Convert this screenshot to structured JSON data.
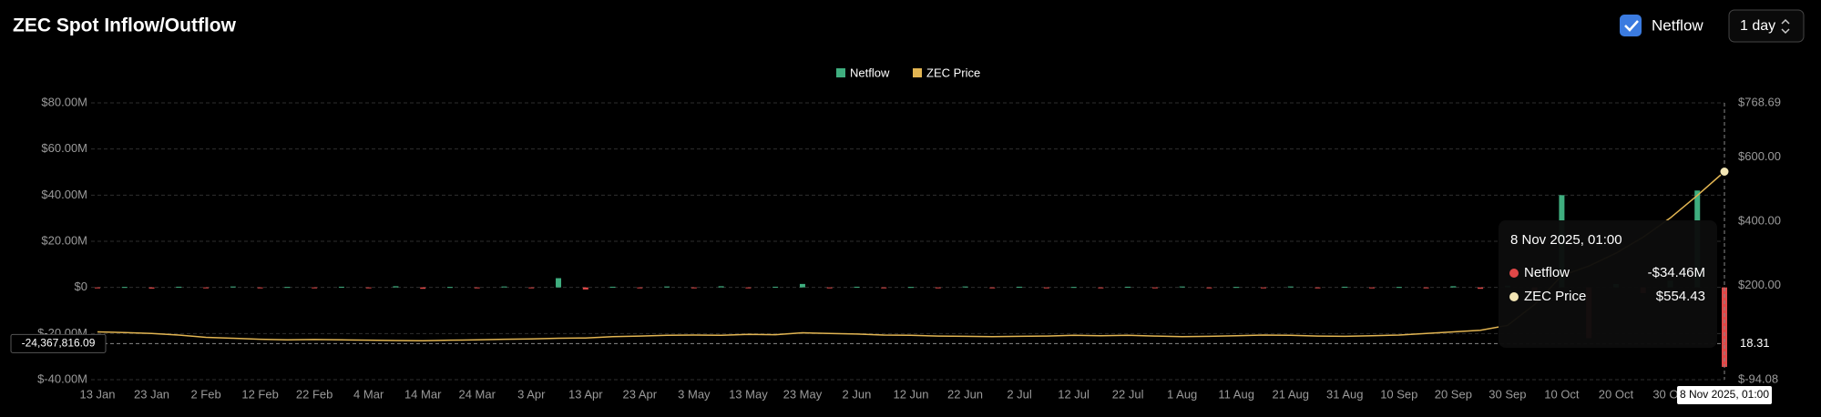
{
  "header": {
    "title": "ZEC Spot Inflow/Outflow",
    "toggle": "Netflow",
    "interval": "1 day"
  },
  "chart_data": {
    "type": "bar-line",
    "categories": [
      "13 Jan",
      null,
      "23 Jan",
      null,
      "2 Feb",
      null,
      "12 Feb",
      null,
      "22 Feb",
      null,
      "4 Mar",
      null,
      "14 Mar",
      null,
      "24 Mar",
      null,
      "3 Apr",
      null,
      "13 Apr",
      null,
      "23 Apr",
      null,
      "3 May",
      null,
      "13 May",
      null,
      "23 May",
      null,
      "2 Jun",
      null,
      "12 Jun",
      null,
      "22 Jun",
      null,
      "2 Jul",
      null,
      "12 Jul",
      null,
      "22 Jul",
      null,
      "1 Aug",
      null,
      "11 Aug",
      null,
      "21 Aug",
      null,
      "31 Aug",
      null,
      "10 Sep",
      null,
      "20 Sep",
      null,
      "30 Sep",
      null,
      "10 Oct",
      null,
      "20 Oct",
      null,
      "30 Oct",
      null,
      "8 Nov 2025, 01:00"
    ],
    "series": [
      {
        "name": "Netflow",
        "type": "bar",
        "color": "#3fae7f",
        "negative_color": "#e04848",
        "values": [
          -300000,
          200000,
          -500000,
          300000,
          -200000,
          400000,
          -300000,
          200000,
          -400000,
          300000,
          -200000,
          500000,
          -600000,
          200000,
          -300000,
          400000,
          -200000,
          4000000,
          -900000,
          300000,
          -200000,
          400000,
          -300000,
          500000,
          -200000,
          300000,
          1500000,
          -200000,
          300000,
          -400000,
          200000,
          -300000,
          400000,
          -200000,
          300000,
          -300000,
          200000,
          -400000,
          300000,
          -200000,
          400000,
          -300000,
          200000,
          -300000,
          400000,
          -200000,
          300000,
          -400000,
          200000,
          -300000,
          500000,
          -600000,
          800000,
          -2000000,
          40000000,
          -22000000,
          1500000,
          -2500000,
          3000000,
          42000000,
          -34460000
        ]
      },
      {
        "name": "ZEC Price",
        "type": "line",
        "axis": "y2",
        "color": "#e2b552",
        "values": [
          55,
          53,
          50,
          45,
          38,
          35,
          32,
          30,
          31,
          30,
          29,
          28,
          27,
          29,
          30,
          32,
          33,
          35,
          36,
          40,
          42,
          44,
          45,
          44,
          47,
          46,
          52,
          50,
          48,
          45,
          44,
          42,
          41,
          40,
          41,
          42,
          44,
          43,
          44,
          42,
          40,
          41,
          43,
          45,
          44,
          42,
          41,
          43,
          45,
          50,
          55,
          60,
          75,
          140,
          230,
          260,
          300,
          350,
          410,
          480,
          554.43
        ]
      }
    ],
    "ylim": [
      -40000000,
      80000000
    ],
    "yticks": [
      {
        "value": -40000000,
        "label": "$-40.00M"
      },
      {
        "value": -20000000,
        "label": "$-20.00M"
      },
      {
        "value": 0,
        "label": "$0"
      },
      {
        "value": 20000000,
        "label": "$20.00M"
      },
      {
        "value": 40000000,
        "label": "$40.00M"
      },
      {
        "value": 60000000,
        "label": "$60.00M"
      },
      {
        "value": 80000000,
        "label": "$80.00M"
      }
    ],
    "y2lim": [
      -94.08,
      768.69
    ],
    "y2ticks": [
      {
        "value": -94.08,
        "label": "$-94.08"
      },
      {
        "value": 200,
        "label": "$200.00"
      },
      {
        "value": 400,
        "label": "$400.00"
      },
      {
        "value": 600,
        "label": "$600.00"
      },
      {
        "value": 768.69,
        "label": "$768.69"
      }
    ],
    "grid": true,
    "legend": "top",
    "crosshair": {
      "y": {
        "value": -24367816.09,
        "label": "-24,367,816.09"
      },
      "y2": 18.31
    },
    "tooltip": {
      "title": "8 Nov 2025, 01:00",
      "items": [
        {
          "name": "Netflow",
          "value": -34460000,
          "label": "-$34.46M"
        },
        {
          "name": "ZEC Price",
          "value": 554.43,
          "label": "$554.43"
        }
      ]
    }
  }
}
